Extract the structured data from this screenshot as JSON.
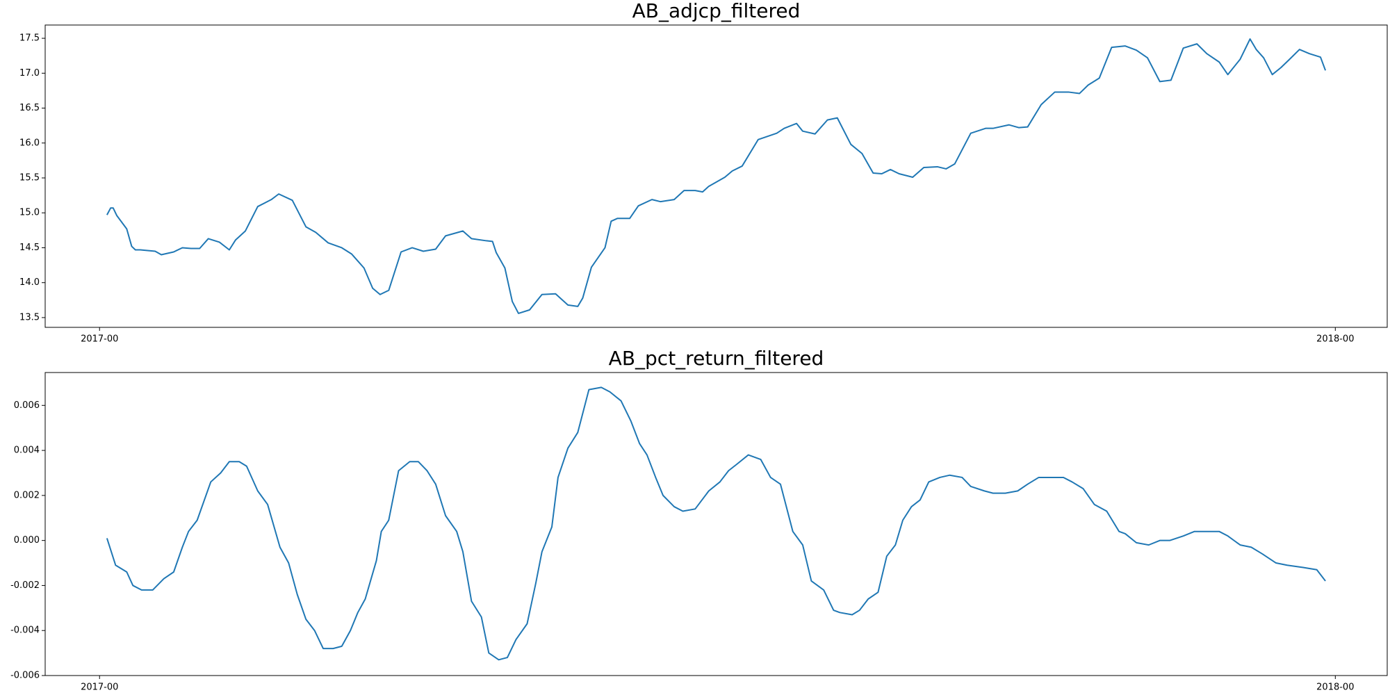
{
  "chart_data": [
    {
      "type": "line",
      "title": "AB_adjcp_filtered",
      "color": "#1f77b4",
      "x": [
        2017.006,
        2017.009,
        2017.011,
        2017.014,
        2017.022,
        2017.026,
        2017.029,
        2017.033,
        2017.045,
        2017.05,
        2017.06,
        2017.067,
        2017.074,
        2017.081,
        2017.088,
        2017.097,
        2017.105,
        2017.11,
        2017.118,
        2017.128,
        2017.139,
        2017.145,
        2017.156,
        2017.167,
        2017.175,
        2017.185,
        2017.196,
        2017.204,
        2017.214,
        2017.221,
        2017.227,
        2017.234,
        2017.244,
        2017.253,
        2017.262,
        2017.272,
        2017.28,
        2017.294,
        2017.301,
        2017.313,
        2017.318,
        2017.321,
        2017.328,
        2017.334,
        2017.339,
        2017.348,
        2017.358,
        2017.369,
        2017.379,
        2017.387,
        2017.391,
        2017.398,
        2017.409,
        2017.414,
        2017.419,
        2017.429,
        2017.436,
        2017.447,
        2017.454,
        2017.465,
        2017.473,
        2017.482,
        2017.488,
        2017.493,
        2017.506,
        2017.512,
        2017.52,
        2017.533,
        2017.548,
        2017.554,
        2017.564,
        2017.569,
        2017.579,
        2017.589,
        2017.597,
        2017.608,
        2017.617,
        2017.626,
        2017.633,
        2017.64,
        2017.647,
        2017.658,
        2017.667,
        2017.678,
        2017.685,
        2017.692,
        2017.705,
        2017.717,
        2017.723,
        2017.736,
        2017.744,
        2017.751,
        2017.762,
        2017.773,
        2017.784,
        2017.793,
        2017.8,
        2017.809,
        2017.819,
        2017.83,
        2017.839,
        2017.848,
        2017.858,
        2017.867,
        2017.877,
        2017.888,
        2017.896,
        2017.906,
        2017.913,
        2017.923,
        2017.931,
        2017.936,
        2017.942,
        2017.949,
        2017.956,
        2017.963,
        2017.971,
        2017.979,
        2017.988,
        2017.992
      ],
      "values": [
        14.97,
        15.07,
        15.07,
        14.96,
        14.77,
        14.52,
        14.47,
        14.47,
        14.45,
        14.4,
        14.44,
        14.5,
        14.49,
        14.49,
        14.63,
        14.58,
        14.47,
        14.61,
        14.74,
        15.09,
        15.19,
        15.27,
        15.18,
        14.8,
        14.72,
        14.57,
        14.5,
        14.41,
        14.21,
        13.92,
        13.83,
        13.89,
        14.44,
        14.5,
        14.45,
        14.48,
        14.67,
        14.74,
        14.63,
        14.6,
        14.59,
        14.43,
        14.21,
        13.73,
        13.56,
        13.61,
        13.83,
        13.84,
        13.68,
        13.66,
        13.78,
        14.22,
        14.5,
        14.88,
        14.92,
        14.92,
        15.1,
        15.19,
        15.16,
        15.19,
        15.32,
        15.32,
        15.3,
        15.38,
        15.51,
        15.6,
        15.67,
        16.05,
        16.14,
        16.21,
        16.28,
        16.17,
        16.13,
        16.33,
        16.36,
        15.98,
        15.85,
        15.57,
        15.56,
        15.62,
        15.56,
        15.51,
        15.65,
        15.66,
        15.63,
        15.7,
        16.14,
        16.21,
        16.21,
        16.26,
        16.22,
        16.23,
        16.55,
        16.73,
        16.73,
        16.71,
        16.83,
        16.93,
        17.37,
        17.39,
        17.33,
        17.22,
        16.88,
        16.9,
        17.36,
        17.42,
        17.28,
        17.16,
        16.98,
        17.2,
        17.49,
        17.34,
        17.22,
        16.98,
        17.08,
        17.2,
        17.34,
        17.28,
        17.23,
        17.04
      ],
      "xlim": [
        2016.956,
        2018.042
      ],
      "xticks": [
        {
          "value": 2017,
          "label": "2017-00"
        },
        {
          "value": 2018,
          "label": "2018-00"
        }
      ],
      "ylim": [
        13.36,
        17.69
      ],
      "yticks": [
        13.5,
        {
          "value": 14,
          "label": "14.0"
        },
        14.5,
        {
          "value": 15,
          "label": "15.0"
        },
        15.5,
        {
          "value": 16,
          "label": "16.0"
        },
        16.5,
        {
          "value": 17,
          "label": "17.0"
        },
        17.5
      ],
      "grid": false
    },
    {
      "type": "line",
      "title": "AB_pct_return_filtered",
      "color": "#1f77b4",
      "x": [
        2017.006,
        2017.013,
        2017.022,
        2017.027,
        2017.034,
        2017.043,
        2017.052,
        2017.06,
        2017.067,
        2017.072,
        2017.079,
        2017.09,
        2017.098,
        2017.105,
        2017.113,
        2017.119,
        2017.128,
        2017.136,
        2017.146,
        2017.153,
        2017.16,
        2017.167,
        2017.174,
        2017.181,
        2017.189,
        2017.196,
        2017.203,
        2017.209,
        2017.215,
        2017.224,
        2017.228,
        2017.234,
        2017.242,
        2017.251,
        2017.258,
        2017.265,
        2017.272,
        2017.28,
        2017.289,
        2017.294,
        2017.301,
        2017.309,
        2017.315,
        2017.323,
        2017.33,
        2017.337,
        2017.346,
        2017.353,
        2017.358,
        2017.366,
        2017.371,
        2017.379,
        2017.387,
        2017.396,
        2017.406,
        2017.413,
        2017.422,
        2017.43,
        2017.437,
        2017.443,
        2017.45,
        2017.456,
        2017.465,
        2017.472,
        2017.482,
        2017.493,
        2017.502,
        2017.509,
        2017.516,
        2017.525,
        2017.535,
        2017.543,
        2017.551,
        2017.561,
        2017.569,
        2017.576,
        2017.586,
        2017.594,
        2017.599,
        2017.609,
        2017.615,
        2017.622,
        2017.63,
        2017.637,
        2017.644,
        2017.65,
        2017.657,
        2017.664,
        2017.671,
        2017.68,
        2017.688,
        2017.698,
        2017.705,
        2017.716,
        2017.723,
        2017.733,
        2017.743,
        2017.751,
        2017.76,
        2017.769,
        2017.78,
        2017.787,
        2017.796,
        2017.805,
        2017.815,
        2017.825,
        2017.83,
        2017.839,
        2017.849,
        2017.858,
        2017.866,
        2017.877,
        2017.886,
        2017.895,
        2017.906,
        2017.913,
        2017.923,
        2017.932,
        2017.941,
        2017.952,
        2017.961,
        2017.974,
        2017.985,
        2017.992
      ],
      "values": [
        0.0001,
        -0.0011,
        -0.0014,
        -0.002,
        -0.0022,
        -0.0022,
        -0.0017,
        -0.0014,
        -0.0003,
        0.0004,
        0.0009,
        0.0026,
        0.003,
        0.0035,
        0.0035,
        0.0033,
        0.0022,
        0.0016,
        -0.0003,
        -0.001,
        -0.0024,
        -0.0035,
        -0.004,
        -0.0048,
        -0.0048,
        -0.0047,
        -0.004,
        -0.0032,
        -0.0026,
        -0.0009,
        0.0004,
        0.0009,
        0.0031,
        0.0035,
        0.0035,
        0.0031,
        0.0025,
        0.0011,
        0.0004,
        -0.0005,
        -0.0027,
        -0.0034,
        -0.005,
        -0.0053,
        -0.0052,
        -0.0044,
        -0.0037,
        -0.0019,
        -0.0005,
        0.0006,
        0.0028,
        0.0041,
        0.0048,
        0.0067,
        0.0068,
        0.0066,
        0.0062,
        0.0053,
        0.0043,
        0.0038,
        0.0028,
        0.002,
        0.0015,
        0.0013,
        0.0014,
        0.0022,
        0.0026,
        0.0031,
        0.0034,
        0.0038,
        0.0036,
        0.0028,
        0.0025,
        0.0004,
        -0.0002,
        -0.0018,
        -0.0022,
        -0.0031,
        -0.0032,
        -0.0033,
        -0.0031,
        -0.0026,
        -0.0023,
        -0.0007,
        -0.0002,
        0.0009,
        0.0015,
        0.0018,
        0.0026,
        0.0028,
        0.0029,
        0.0028,
        0.0024,
        0.0022,
        0.0021,
        0.0021,
        0.0022,
        0.0025,
        0.0028,
        0.0028,
        0.0028,
        0.0026,
        0.0023,
        0.0016,
        0.0013,
        0.0004,
        0.0003,
        -0.0001,
        -0.0002,
        0,
        0,
        0.0002,
        0.0004,
        0.0004,
        0.0004,
        0.0002,
        -0.0002,
        -0.0003,
        -0.0006,
        -0.001,
        -0.0011,
        -0.0012,
        -0.0013,
        -0.0018
      ],
      "xlim": [
        2016.956,
        2018.042
      ],
      "xticks": [
        {
          "value": 2017,
          "label": "2017-00"
        },
        {
          "value": 2018,
          "label": "2018-00"
        }
      ],
      "ylim": [
        -0.006,
        0.00746
      ],
      "yticks": [
        -0.006,
        -0.004,
        -0.002,
        {
          "value": 0,
          "label": "0.000"
        },
        0.002,
        0.004,
        0.006
      ],
      "grid": false
    }
  ]
}
